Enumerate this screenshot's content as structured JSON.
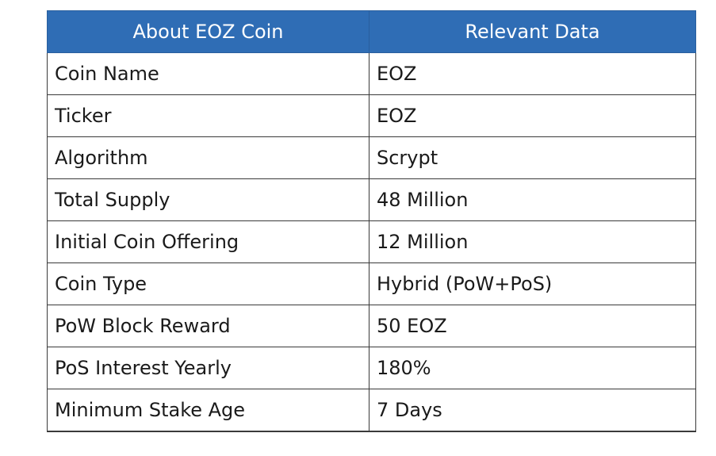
{
  "table": {
    "headers": [
      "About EOZ Coin",
      "Relevant Data"
    ],
    "rows": [
      [
        "Coin Name",
        "EOZ"
      ],
      [
        "Ticker",
        "EOZ"
      ],
      [
        "Algorithm",
        "Scrypt"
      ],
      [
        "Total Supply",
        "48 Million"
      ],
      [
        "Initial Coin Offering",
        "12 Million"
      ],
      [
        "Coin Type",
        "Hybrid (PoW+PoS)"
      ],
      [
        "PoW Block Reward",
        "50 EOZ"
      ],
      [
        "PoS Interest Yearly",
        "180%"
      ],
      [
        "Minimum Stake Age",
        "7 Days"
      ]
    ]
  },
  "colors": {
    "header_background": "#2f6db5",
    "header_text": "#ffffff",
    "border": "#3a3a3a"
  }
}
